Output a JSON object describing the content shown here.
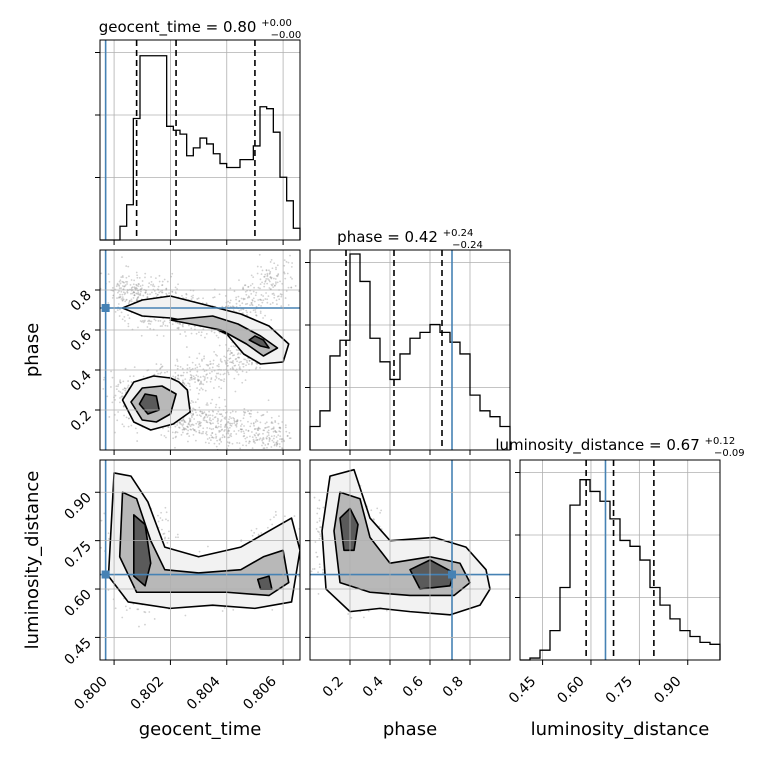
{
  "chart_data": {
    "type": "corner",
    "truth_color": "#4682b4",
    "grid": true,
    "parameters": [
      {
        "name": "geocent_time",
        "axis_label": "geocent_time",
        "range": [
          0.7995,
          0.8066
        ],
        "ticks": [
          0.8,
          0.802,
          0.804,
          0.806
        ],
        "tick_labels": [
          "0.800",
          "0.802",
          "0.804",
          "0.806"
        ],
        "truth": 0.7997,
        "quantiles": [
          0.8008,
          0.8022,
          0.805
        ],
        "title": {
          "main": "geocent_time = 0.80",
          "sup": "+0.00",
          "sub": "−0.00"
        },
        "hist": [
          0,
          0,
          0,
          0.07,
          0.18,
          0.62,
          0.94,
          0.94,
          0.94,
          0.94,
          0.58,
          0.56,
          0.54,
          0.43,
          0.47,
          0.52,
          0.49,
          0.44,
          0.39,
          0.37,
          0.37,
          0.41,
          0.41,
          0.48,
          0.68,
          0.67,
          0.55,
          0.32,
          0.2,
          0.06
        ]
      },
      {
        "name": "phase",
        "axis_label": "phase",
        "range": [
          0.0,
          1.0
        ],
        "ticks": [
          0.2,
          0.4,
          0.6,
          0.8
        ],
        "tick_labels": [
          "0.2",
          "0.4",
          "0.6",
          "0.8"
        ],
        "truth": 0.71,
        "quantiles": [
          0.18,
          0.42,
          0.66
        ],
        "title": {
          "main": "phase = 0.42",
          "sup": "+0.24",
          "sub": "−0.24"
        },
        "hist": [
          0.12,
          0.2,
          0.48,
          0.56,
          1.0,
          0.86,
          0.57,
          0.45,
          0.36,
          0.49,
          0.57,
          0.6,
          0.64,
          0.6,
          0.55,
          0.49,
          0.28,
          0.2,
          0.17,
          0.12
        ]
      },
      {
        "name": "luminosity_distance",
        "axis_label": "luminosity_distance",
        "range": [
          0.38,
          1.0
        ],
        "ticks": [
          0.45,
          0.6,
          0.75,
          0.9
        ],
        "tick_labels": [
          "0.45",
          "0.60",
          "0.75",
          "0.90"
        ],
        "truth": 0.645,
        "quantiles": [
          0.585,
          0.67,
          0.795
        ],
        "title": {
          "main": "luminosity_distance = 0.67",
          "sup": "+0.12",
          "sub": "−0.09"
        },
        "hist": [
          0.0,
          0.01,
          0.05,
          0.15,
          0.37,
          0.79,
          0.92,
          0.86,
          0.81,
          0.72,
          0.61,
          0.58,
          0.51,
          0.37,
          0.28,
          0.21,
          0.15,
          0.12,
          0.09,
          0.08
        ]
      }
    ],
    "pairs": [
      {
        "x": "geocent_time",
        "y": "phase",
        "modes": [
          {
            "path": [
              [
                0.8003,
                0.3
              ],
              [
                0.8012,
                0.2
              ],
              [
                0.8025,
                0.16
              ],
              [
                0.804,
                0.12
              ],
              [
                0.806,
                0.05
              ]
            ],
            "spread": 0.055,
            "n": 900
          },
          {
            "path": [
              [
                0.8003,
                0.82
              ],
              [
                0.8012,
                0.72
              ],
              [
                0.8025,
                0.7
              ],
              [
                0.804,
                0.64
              ],
              [
                0.806,
                0.9
              ]
            ],
            "spread": 0.055,
            "n": 900
          },
          {
            "path": [
              [
                0.804,
                0.64
              ],
              [
                0.8052,
                0.52
              ],
              [
                0.804,
                0.42
              ],
              [
                0.8025,
                0.36
              ],
              [
                0.8012,
                0.3
              ]
            ],
            "spread": 0.045,
            "n": 500
          }
        ],
        "contours": [
          {
            "level": 3,
            "points": [
              [
                0.8003,
                0.25
              ],
              [
                0.8007,
                0.14
              ],
              [
                0.8013,
                0.1
              ],
              [
                0.8021,
                0.13
              ],
              [
                0.8027,
                0.19
              ],
              [
                0.8026,
                0.3
              ],
              [
                0.8023,
                0.34
              ],
              [
                0.802,
                0.36
              ],
              [
                0.8014,
                0.37
              ],
              [
                0.8007,
                0.34
              ]
            ]
          },
          {
            "level": 3,
            "points": [
              [
                0.8003,
                0.71
              ],
              [
                0.801,
                0.75
              ],
              [
                0.802,
                0.77
              ],
              [
                0.8034,
                0.72
              ],
              [
                0.8045,
                0.68
              ],
              [
                0.8055,
                0.62
              ],
              [
                0.8062,
                0.53
              ],
              [
                0.806,
                0.44
              ],
              [
                0.8052,
                0.43
              ],
              [
                0.8046,
                0.48
              ],
              [
                0.804,
                0.58
              ],
              [
                0.8032,
                0.63
              ],
              [
                0.802,
                0.66
              ],
              [
                0.801,
                0.67
              ]
            ]
          },
          {
            "level": 2,
            "points": [
              [
                0.8006,
                0.24
              ],
              [
                0.801,
                0.15
              ],
              [
                0.8015,
                0.14
              ],
              [
                0.802,
                0.18
              ],
              [
                0.8022,
                0.28
              ],
              [
                0.8017,
                0.32
              ],
              [
                0.801,
                0.31
              ]
            ]
          },
          {
            "level": 2,
            "points": [
              [
                0.802,
                0.65
              ],
              [
                0.8035,
                0.67
              ],
              [
                0.8044,
                0.63
              ],
              [
                0.8052,
                0.57
              ],
              [
                0.8058,
                0.51
              ],
              [
                0.8053,
                0.47
              ],
              [
                0.8047,
                0.53
              ],
              [
                0.8038,
                0.6
              ]
            ]
          },
          {
            "level": 1,
            "points": [
              [
                0.8009,
                0.23
              ],
              [
                0.8012,
                0.18
              ],
              [
                0.8016,
                0.2
              ],
              [
                0.8015,
                0.27
              ],
              [
                0.8011,
                0.28
              ]
            ]
          },
          {
            "level": 1,
            "points": [
              [
                0.8048,
                0.55
              ],
              [
                0.8052,
                0.52
              ],
              [
                0.8055,
                0.51
              ],
              [
                0.8053,
                0.55
              ],
              [
                0.805,
                0.57
              ]
            ]
          }
        ]
      },
      {
        "x": "geocent_time",
        "y": "luminosity_distance",
        "modes": [
          {
            "path": [
              [
                0.8008,
                0.8
              ],
              [
                0.801,
                0.68
              ],
              [
                0.8012,
                0.6
              ]
            ],
            "spread": 0.07,
            "n": 900
          },
          {
            "path": [
              [
                0.8015,
                0.62
              ],
              [
                0.803,
                0.63
              ],
              [
                0.8045,
                0.62
              ]
            ],
            "spread": 0.05,
            "n": 700
          },
          {
            "path": [
              [
                0.805,
                0.63
              ],
              [
                0.8055,
                0.7
              ],
              [
                0.8062,
                0.75
              ]
            ],
            "spread": 0.06,
            "n": 500
          }
        ],
        "contours": [
          {
            "level": 3,
            "points": [
              [
                0.8,
                0.96
              ],
              [
                0.8006,
                0.95
              ],
              [
                0.8012,
                0.87
              ],
              [
                0.8018,
                0.73
              ],
              [
                0.803,
                0.7
              ],
              [
                0.8045,
                0.73
              ],
              [
                0.8055,
                0.78
              ],
              [
                0.8063,
                0.82
              ],
              [
                0.8066,
                0.72
              ],
              [
                0.8063,
                0.56
              ],
              [
                0.805,
                0.54
              ],
              [
                0.8035,
                0.55
              ],
              [
                0.802,
                0.54
              ],
              [
                0.8005,
                0.56
              ],
              [
                0.7998,
                0.64
              ]
            ]
          },
          {
            "level": 2,
            "points": [
              [
                0.8003,
                0.9
              ],
              [
                0.8008,
                0.88
              ],
              [
                0.8013,
                0.75
              ],
              [
                0.8018,
                0.66
              ],
              [
                0.803,
                0.65
              ],
              [
                0.8045,
                0.66
              ],
              [
                0.8053,
                0.7
              ],
              [
                0.806,
                0.72
              ],
              [
                0.8062,
                0.62
              ],
              [
                0.8055,
                0.58
              ],
              [
                0.804,
                0.59
              ],
              [
                0.802,
                0.59
              ],
              [
                0.8008,
                0.59
              ],
              [
                0.8002,
                0.7
              ]
            ]
          },
          {
            "level": 1,
            "points": [
              [
                0.8007,
                0.83
              ],
              [
                0.8011,
                0.8
              ],
              [
                0.8013,
                0.68
              ],
              [
                0.8011,
                0.61
              ],
              [
                0.8007,
                0.64
              ]
            ]
          },
          {
            "level": 1,
            "points": [
              [
                0.8051,
                0.63
              ],
              [
                0.8055,
                0.64
              ],
              [
                0.8056,
                0.6
              ],
              [
                0.8052,
                0.6
              ]
            ]
          }
        ]
      },
      {
        "x": "phase",
        "y": "luminosity_distance",
        "modes": [
          {
            "path": [
              [
                0.18,
                0.82
              ],
              [
                0.2,
                0.7
              ],
              [
                0.22,
                0.62
              ]
            ],
            "spread": 0.07,
            "n": 900
          },
          {
            "path": [
              [
                0.35,
                0.63
              ],
              [
                0.55,
                0.62
              ],
              [
                0.75,
                0.63
              ]
            ],
            "spread": 0.05,
            "n": 900
          }
        ],
        "contours": [
          {
            "level": 3,
            "points": [
              [
                0.06,
                0.78
              ],
              [
                0.1,
                0.95
              ],
              [
                0.22,
                0.97
              ],
              [
                0.3,
                0.82
              ],
              [
                0.4,
                0.75
              ],
              [
                0.62,
                0.76
              ],
              [
                0.78,
                0.73
              ],
              [
                0.88,
                0.66
              ],
              [
                0.9,
                0.6
              ],
              [
                0.85,
                0.55
              ],
              [
                0.7,
                0.52
              ],
              [
                0.5,
                0.53
              ],
              [
                0.35,
                0.54
              ],
              [
                0.2,
                0.53
              ],
              [
                0.08,
                0.6
              ]
            ]
          },
          {
            "level": 2,
            "points": [
              [
                0.12,
                0.78
              ],
              [
                0.15,
                0.9
              ],
              [
                0.25,
                0.88
              ],
              [
                0.3,
                0.76
              ],
              [
                0.4,
                0.68
              ],
              [
                0.6,
                0.7
              ],
              [
                0.75,
                0.68
              ],
              [
                0.8,
                0.62
              ],
              [
                0.72,
                0.58
              ],
              [
                0.5,
                0.58
              ],
              [
                0.3,
                0.59
              ],
              [
                0.15,
                0.62
              ]
            ]
          },
          {
            "level": 1,
            "points": [
              [
                0.15,
                0.82
              ],
              [
                0.2,
                0.85
              ],
              [
                0.24,
                0.8
              ],
              [
                0.22,
                0.72
              ],
              [
                0.17,
                0.72
              ]
            ]
          },
          {
            "level": 1,
            "points": [
              [
                0.5,
                0.66
              ],
              [
                0.6,
                0.69
              ],
              [
                0.72,
                0.65
              ],
              [
                0.7,
                0.61
              ],
              [
                0.55,
                0.6
              ]
            ]
          }
        ]
      }
    ]
  }
}
